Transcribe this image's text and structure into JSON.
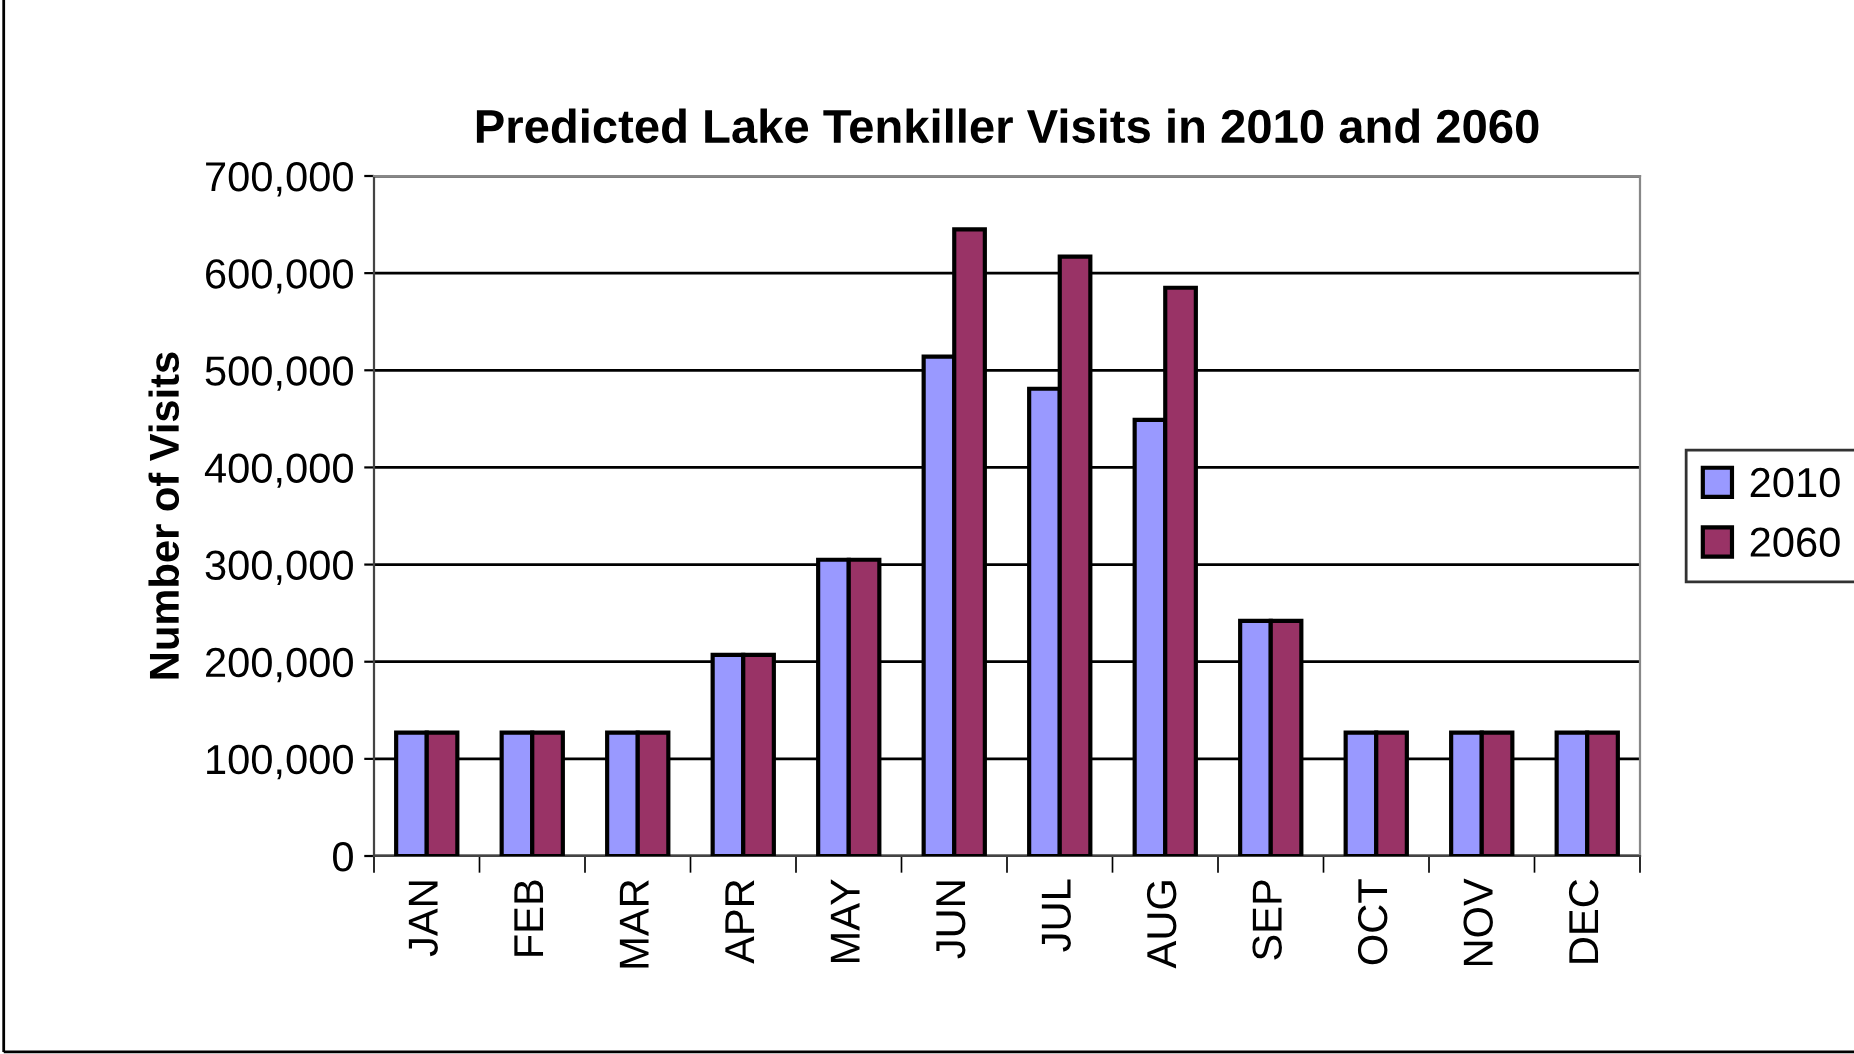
{
  "chart_data": {
    "type": "bar",
    "title": "Predicted Lake Tenkiller Visits in 2010 and 2060",
    "ylabel": "Number of Visits",
    "categories": [
      "JAN",
      "FEB",
      "MAR",
      "APR",
      "MAY",
      "JUN",
      "JUL",
      "AUG",
      "SEP",
      "OCT",
      "NOV",
      "DEC"
    ],
    "series": [
      {
        "name": "2010",
        "color": "#9999ff",
        "values": [
          127000,
          127000,
          127000,
          207000,
          305000,
          514000,
          481000,
          449000,
          242000,
          127000,
          127000,
          127000
        ]
      },
      {
        "name": "2060",
        "color": "#993366",
        "values": [
          127000,
          127000,
          127000,
          207000,
          305000,
          645000,
          617000,
          585000,
          242000,
          127000,
          127000,
          127000
        ]
      }
    ],
    "ylim": [
      0,
      700000
    ],
    "yticks": [
      {
        "value": 0,
        "label": "0"
      },
      {
        "value": 100000,
        "label": "100,000"
      },
      {
        "value": 200000,
        "label": "200,000"
      },
      {
        "value": 300000,
        "label": "300,000"
      },
      {
        "value": 400000,
        "label": "400,000"
      },
      {
        "value": 500000,
        "label": "500,000"
      },
      {
        "value": 600000,
        "label": "600,000"
      },
      {
        "value": 700000,
        "label": "700,000"
      }
    ],
    "grid": "y",
    "legend": "right"
  }
}
